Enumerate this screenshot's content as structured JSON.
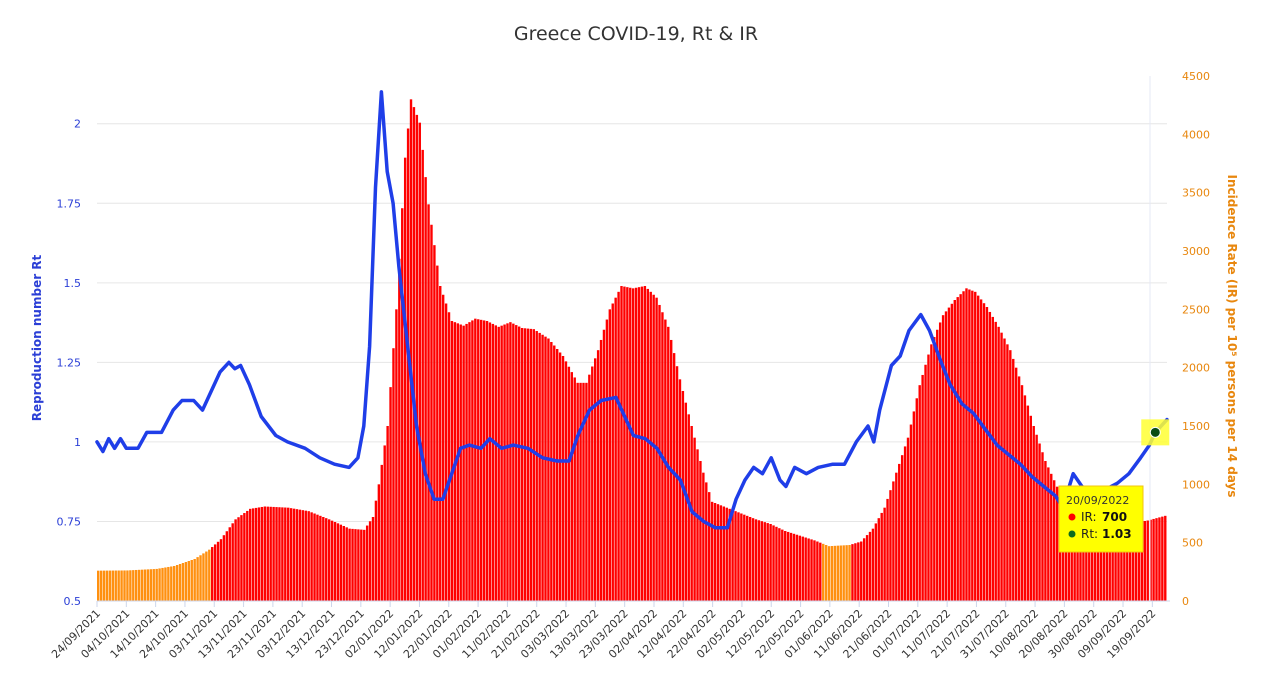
{
  "chart_data": {
    "type": "bar+line",
    "title": "Greece COVID-19, Rt & IR",
    "left_axis": {
      "label": "Reproduction number Rt",
      "range": [
        0.5,
        2.15
      ],
      "ticks": [
        "0.5",
        "0.75",
        "1",
        "1.25",
        "1.5",
        "1.75",
        "2"
      ],
      "color": "#2b3fd6"
    },
    "right_axis": {
      "label": "Incidence Rate (IR) per 10⁵ persons per 14 days",
      "range": [
        0,
        4500
      ],
      "ticks": [
        "0",
        "500",
        "1000",
        "1500",
        "2000",
        "2500",
        "3000",
        "3500",
        "4000",
        "4500"
      ],
      "color": "#e8870e"
    },
    "x_axis": {
      "start_date": "24/09/2021",
      "end_date": "24/09/2022",
      "tick_labels": [
        "24/09/2021",
        "04/10/2021",
        "14/10/2021",
        "24/10/2021",
        "03/11/2021",
        "13/11/2021",
        "23/11/2021",
        "03/12/2021",
        "13/12/2021",
        "23/12/2021",
        "02/01/2022",
        "12/01/2022",
        "22/01/2022",
        "01/02/2022",
        "11/02/2022",
        "21/02/2022",
        "03/03/2022",
        "13/03/2022",
        "23/03/2022",
        "02/04/2022",
        "12/04/2022",
        "22/04/2022",
        "02/05/2022",
        "12/05/2022",
        "22/05/2022",
        "01/06/2022",
        "11/06/2022",
        "21/06/2022",
        "01/07/2022",
        "11/07/2022",
        "21/07/2022",
        "31/07/2022",
        "10/08/2022",
        "20/08/2022",
        "30/08/2022",
        "09/09/2022",
        "19/09/2022"
      ]
    },
    "series": [
      {
        "name": "IR",
        "type": "bar",
        "axis": "right",
        "colors": {
          "low": "#ff9010",
          "high": "#ff0000"
        },
        "orange_periods": [
          [
            "24/09/2021",
            "01/11/2021"
          ],
          [
            "30/05/2022",
            "08/06/2022"
          ]
        ],
        "points": [
          [
            "24/09/2021",
            260
          ],
          [
            "04/10/2021",
            262
          ],
          [
            "14/10/2021",
            275
          ],
          [
            "20/10/2021",
            300
          ],
          [
            "27/10/2021",
            360
          ],
          [
            "01/11/2021",
            440
          ],
          [
            "05/11/2021",
            530
          ],
          [
            "10/11/2021",
            700
          ],
          [
            "15/11/2021",
            790
          ],
          [
            "20/11/2021",
            810
          ],
          [
            "28/11/2021",
            800
          ],
          [
            "05/12/2021",
            770
          ],
          [
            "12/12/2021",
            700
          ],
          [
            "19/12/2021",
            620
          ],
          [
            "24/12/2021",
            610
          ],
          [
            "27/12/2021",
            720
          ],
          [
            "29/12/2021",
            1000
          ],
          [
            "01/01/2022",
            1500
          ],
          [
            "04/01/2022",
            2500
          ],
          [
            "07/01/2022",
            3800
          ],
          [
            "09/01/2022",
            4300
          ],
          [
            "12/01/2022",
            4100
          ],
          [
            "15/01/2022",
            3400
          ],
          [
            "19/01/2022",
            2700
          ],
          [
            "23/01/2022",
            2400
          ],
          [
            "27/01/2022",
            2360
          ],
          [
            "31/01/2022",
            2420
          ],
          [
            "04/02/2022",
            2400
          ],
          [
            "08/02/2022",
            2350
          ],
          [
            "12/02/2022",
            2390
          ],
          [
            "16/02/2022",
            2340
          ],
          [
            "20/02/2022",
            2330
          ],
          [
            "25/02/2022",
            2250
          ],
          [
            "02/03/2022",
            2100
          ],
          [
            "07/03/2022",
            1870
          ],
          [
            "10/03/2022",
            1870
          ],
          [
            "14/03/2022",
            2150
          ],
          [
            "18/03/2022",
            2500
          ],
          [
            "22/03/2022",
            2700
          ],
          [
            "26/03/2022",
            2680
          ],
          [
            "30/03/2022",
            2700
          ],
          [
            "03/04/2022",
            2600
          ],
          [
            "07/04/2022",
            2350
          ],
          [
            "11/04/2022",
            1900
          ],
          [
            "15/04/2022",
            1500
          ],
          [
            "19/04/2022",
            1100
          ],
          [
            "22/04/2022",
            850
          ],
          [
            "27/04/2022",
            800
          ],
          [
            "02/05/2022",
            750
          ],
          [
            "07/05/2022",
            700
          ],
          [
            "12/05/2022",
            660
          ],
          [
            "17/05/2022",
            600
          ],
          [
            "22/05/2022",
            560
          ],
          [
            "27/05/2022",
            520
          ],
          [
            "01/06/2022",
            470
          ],
          [
            "08/06/2022",
            480
          ],
          [
            "12/06/2022",
            510
          ],
          [
            "16/06/2022",
            620
          ],
          [
            "20/06/2022",
            800
          ],
          [
            "24/06/2022",
            1100
          ],
          [
            "28/06/2022",
            1400
          ],
          [
            "02/07/2022",
            1850
          ],
          [
            "06/07/2022",
            2200
          ],
          [
            "10/07/2022",
            2450
          ],
          [
            "14/07/2022",
            2580
          ],
          [
            "18/07/2022",
            2680
          ],
          [
            "21/07/2022",
            2650
          ],
          [
            "25/07/2022",
            2520
          ],
          [
            "29/07/2022",
            2350
          ],
          [
            "02/08/2022",
            2150
          ],
          [
            "06/08/2022",
            1850
          ],
          [
            "10/08/2022",
            1500
          ],
          [
            "14/08/2022",
            1200
          ],
          [
            "18/08/2022",
            980
          ],
          [
            "23/08/2022",
            830
          ],
          [
            "28/08/2022",
            720
          ],
          [
            "02/09/2022",
            680
          ],
          [
            "08/09/2022",
            660
          ],
          [
            "13/09/2022",
            670
          ],
          [
            "18/09/2022",
            690
          ],
          [
            "24/09/2022",
            730
          ]
        ]
      },
      {
        "name": "Rt",
        "type": "line",
        "axis": "left",
        "color": "#1f3ee8",
        "points": [
          [
            "24/09/2021",
            1.0
          ],
          [
            "26/09/2021",
            0.97
          ],
          [
            "28/09/2021",
            1.01
          ],
          [
            "30/09/2021",
            0.98
          ],
          [
            "02/10/2021",
            1.01
          ],
          [
            "04/10/2021",
            0.98
          ],
          [
            "08/10/2021",
            0.98
          ],
          [
            "11/10/2021",
            1.03
          ],
          [
            "16/10/2021",
            1.03
          ],
          [
            "20/10/2021",
            1.1
          ],
          [
            "23/10/2021",
            1.13
          ],
          [
            "27/10/2021",
            1.13
          ],
          [
            "30/10/2021",
            1.1
          ],
          [
            "02/11/2021",
            1.16
          ],
          [
            "05/11/2021",
            1.22
          ],
          [
            "08/11/2021",
            1.25
          ],
          [
            "10/11/2021",
            1.23
          ],
          [
            "12/11/2021",
            1.24
          ],
          [
            "15/11/2021",
            1.18
          ],
          [
            "19/11/2021",
            1.08
          ],
          [
            "24/11/2021",
            1.02
          ],
          [
            "28/11/2021",
            1.0
          ],
          [
            "04/12/2021",
            0.98
          ],
          [
            "09/12/2021",
            0.95
          ],
          [
            "14/12/2021",
            0.93
          ],
          [
            "19/12/2021",
            0.92
          ],
          [
            "22/12/2021",
            0.95
          ],
          [
            "24/12/2021",
            1.05
          ],
          [
            "26/12/2021",
            1.3
          ],
          [
            "28/12/2021",
            1.8
          ],
          [
            "30/12/2021",
            2.1
          ],
          [
            "01/01/2022",
            1.85
          ],
          [
            "03/01/2022",
            1.75
          ],
          [
            "05/01/2022",
            1.55
          ],
          [
            "08/01/2022",
            1.3
          ],
          [
            "11/01/2022",
            1.05
          ],
          [
            "14/01/2022",
            0.9
          ],
          [
            "17/01/2022",
            0.82
          ],
          [
            "20/01/2022",
            0.82
          ],
          [
            "23/01/2022",
            0.9
          ],
          [
            "26/01/2022",
            0.98
          ],
          [
            "29/01/2022",
            0.99
          ],
          [
            "02/02/2022",
            0.98
          ],
          [
            "05/02/2022",
            1.01
          ],
          [
            "09/02/2022",
            0.98
          ],
          [
            "13/02/2022",
            0.99
          ],
          [
            "18/02/2022",
            0.98
          ],
          [
            "23/02/2022",
            0.95
          ],
          [
            "28/02/2022",
            0.94
          ],
          [
            "04/03/2022",
            0.94
          ],
          [
            "07/03/2022",
            1.02
          ],
          [
            "11/03/2022",
            1.1
          ],
          [
            "15/03/2022",
            1.13
          ],
          [
            "20/03/2022",
            1.14
          ],
          [
            "23/03/2022",
            1.08
          ],
          [
            "26/03/2022",
            1.02
          ],
          [
            "30/03/2022",
            1.01
          ],
          [
            "03/04/2022",
            0.98
          ],
          [
            "07/04/2022",
            0.92
          ],
          [
            "11/04/2022",
            0.88
          ],
          [
            "15/04/2022",
            0.78
          ],
          [
            "19/04/2022",
            0.75
          ],
          [
            "23/04/2022",
            0.73
          ],
          [
            "27/04/2022",
            0.73
          ],
          [
            "30/04/2022",
            0.82
          ],
          [
            "03/05/2022",
            0.88
          ],
          [
            "06/05/2022",
            0.92
          ],
          [
            "09/05/2022",
            0.9
          ],
          [
            "12/05/2022",
            0.95
          ],
          [
            "15/05/2022",
            0.88
          ],
          [
            "17/05/2022",
            0.86
          ],
          [
            "20/05/2022",
            0.92
          ],
          [
            "24/05/2022",
            0.9
          ],
          [
            "28/05/2022",
            0.92
          ],
          [
            "02/06/2022",
            0.93
          ],
          [
            "06/06/2022",
            0.93
          ],
          [
            "10/06/2022",
            1.0
          ],
          [
            "14/06/2022",
            1.05
          ],
          [
            "16/06/2022",
            1.0
          ],
          [
            "18/06/2022",
            1.1
          ],
          [
            "22/06/2022",
            1.24
          ],
          [
            "25/06/2022",
            1.27
          ],
          [
            "28/06/2022",
            1.35
          ],
          [
            "02/07/2022",
            1.4
          ],
          [
            "05/07/2022",
            1.35
          ],
          [
            "09/07/2022",
            1.25
          ],
          [
            "12/07/2022",
            1.18
          ],
          [
            "16/07/2022",
            1.12
          ],
          [
            "20/07/2022",
            1.09
          ],
          [
            "24/07/2022",
            1.04
          ],
          [
            "28/07/2022",
            0.99
          ],
          [
            "01/08/2022",
            0.96
          ],
          [
            "05/08/2022",
            0.93
          ],
          [
            "09/08/2022",
            0.89
          ],
          [
            "13/08/2022",
            0.86
          ],
          [
            "17/08/2022",
            0.83
          ],
          [
            "19/08/2022",
            0.8
          ],
          [
            "21/08/2022",
            0.84
          ],
          [
            "23/08/2022",
            0.9
          ],
          [
            "26/08/2022",
            0.86
          ],
          [
            "30/08/2022",
            0.84
          ],
          [
            "03/09/2022",
            0.85
          ],
          [
            "07/09/2022",
            0.87
          ],
          [
            "11/09/2022",
            0.9
          ],
          [
            "15/09/2022",
            0.95
          ],
          [
            "18/09/2022",
            0.99
          ],
          [
            "20/09/2022",
            1.03
          ],
          [
            "24/09/2022",
            1.07
          ]
        ]
      }
    ],
    "grid": "horizontal",
    "tooltip": {
      "date": "20/09/2022",
      "ir_label": "IR:",
      "ir_value": "700",
      "rt_label": "Rt:",
      "rt_value": "1.03",
      "background": "#ffff00"
    }
  }
}
